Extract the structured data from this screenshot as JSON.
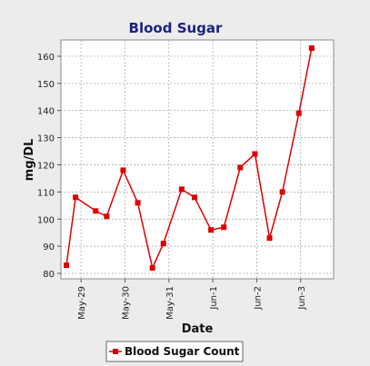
{
  "chart_data": {
    "type": "line",
    "title": "Blood Sugar",
    "xlabel": "Date",
    "ylabel": "mg/DL",
    "ylim": [
      78,
      166
    ],
    "yticks": [
      80,
      90,
      100,
      110,
      120,
      130,
      140,
      150,
      160
    ],
    "xlim": [
      "2014-05-28T13:00",
      "2014-06-03T18:00"
    ],
    "xticks": [
      "May-29",
      "May-30",
      "May-31",
      "Jun-1",
      "Jun-2",
      "Jun-3"
    ],
    "grid": true,
    "legend_position": "bottom",
    "series": [
      {
        "name": "Blood Sugar Count",
        "color": "#dd0000",
        "marker": "square",
        "x": [
          "2014-05-28T16:00",
          "2014-05-28T21:00",
          "2014-05-29T08:00",
          "2014-05-29T14:00",
          "2014-05-29T23:00",
          "2014-05-30T07:00",
          "2014-05-30T15:00",
          "2014-05-30T21:00",
          "2014-05-31T07:00",
          "2014-05-31T14:00",
          "2014-05-31T23:00",
          "2014-06-01T06:00",
          "2014-06-01T15:00",
          "2014-06-01T23:00",
          "2014-06-02T07:00",
          "2014-06-02T14:00",
          "2014-06-02T23:00",
          "2014-06-03T06:00"
        ],
        "values": [
          83,
          108,
          103,
          101,
          118,
          106,
          82,
          91,
          111,
          108,
          96,
          97,
          119,
          124,
          93,
          110,
          139,
          163
        ]
      }
    ]
  }
}
